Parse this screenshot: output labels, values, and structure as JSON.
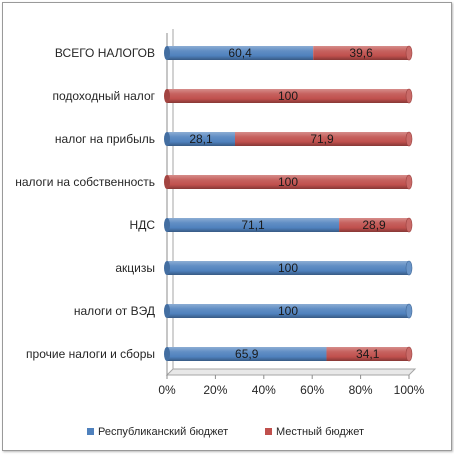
{
  "chart_data": {
    "type": "bar",
    "orientation": "horizontal",
    "stacked": "percent",
    "categories": [
      "ВСЕГО НАЛОГОВ",
      "подоходный налог",
      "налог на прибыль",
      "налоги на собственность",
      "НДС",
      "акцизы",
      "налоги от ВЭД",
      "прочие налоги и сборы"
    ],
    "series": [
      {
        "name": "Республиканский бюджет",
        "color": "#4f81bd",
        "values": [
          60.4,
          0,
          28.1,
          0,
          71.1,
          100,
          100,
          65.9
        ],
        "labels": [
          "60,4",
          "",
          "28,1",
          "",
          "71,1",
          "100",
          "100",
          "65,9"
        ]
      },
      {
        "name": "Местный бюджет",
        "color": "#c0504d",
        "values": [
          39.6,
          100,
          71.9,
          100,
          28.9,
          0,
          0,
          34.1
        ],
        "labels": [
          "39,6",
          "100",
          "71,9",
          "100",
          "28,9",
          "",
          "",
          "34,1"
        ]
      }
    ],
    "xlim": [
      0,
      100
    ],
    "x_ticks": [
      "0%",
      "20%",
      "40%",
      "60%",
      "80%",
      "100%"
    ],
    "grid": false,
    "legend_position": "bottom",
    "title": "",
    "xlabel": "",
    "ylabel": ""
  }
}
